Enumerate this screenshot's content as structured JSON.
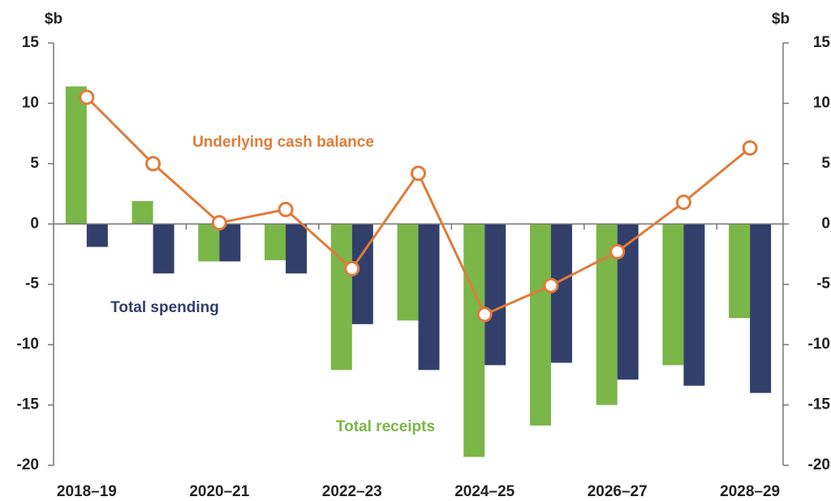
{
  "chart_data": {
    "type": "bar",
    "categories": [
      "2018–19",
      null,
      "2020–21",
      null,
      "2022–23",
      null,
      "2024–25",
      null,
      "2026–27",
      null,
      "2028–29"
    ],
    "ylabel": "$b",
    "y2label": "$b",
    "ylim": [
      -20,
      15
    ],
    "yticks": [
      -20,
      -15,
      -10,
      -5,
      0,
      5,
      10,
      15
    ],
    "y2lim": [
      -20,
      15
    ],
    "y2ticks": [
      -20,
      -15,
      -10,
      -5,
      0,
      5,
      10,
      15
    ],
    "series": [
      {
        "name": "Total receipts",
        "type": "bar",
        "color": "#7ab648",
        "values": [
          11.4,
          1.9,
          -3.1,
          -3.0,
          -12.1,
          -8.0,
          -19.3,
          -16.7,
          -15.0,
          -11.7,
          -7.8
        ]
      },
      {
        "name": "Total spending",
        "type": "bar",
        "color": "#323f6b",
        "values": [
          -1.9,
          -4.1,
          -3.1,
          -4.1,
          -8.3,
          -12.1,
          -11.7,
          -11.5,
          -12.9,
          -13.4,
          -14.0
        ]
      },
      {
        "name": "Underlying cash balance",
        "type": "line",
        "axis": "y2",
        "color": "#e07b39",
        "values": [
          10.5,
          5.0,
          0.1,
          1.2,
          -3.7,
          4.2,
          -7.5,
          -5.1,
          -2.3,
          1.8,
          6.3
        ]
      }
    ]
  }
}
